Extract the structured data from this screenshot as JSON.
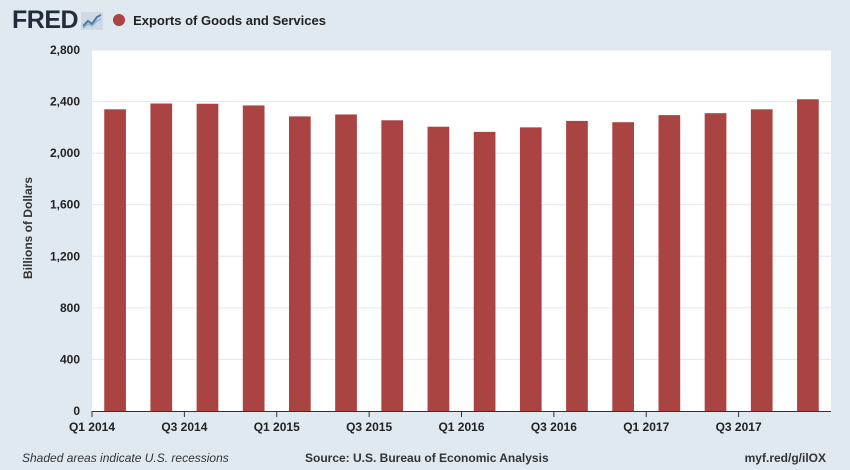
{
  "header": {
    "logo": "FRED",
    "legend_label": "Exports of Goods and Services"
  },
  "colors": {
    "bar": "#a94442",
    "plot_bg": "#ffffff",
    "grid": "#e6e6e6",
    "page_bg": "#e1e9f0"
  },
  "chart_data": {
    "type": "bar",
    "title": "Exports of Goods and Services",
    "xlabel": "",
    "ylabel": "Billions of Dollars",
    "ylim": [
      0,
      2800
    ],
    "yticks": [
      0,
      400,
      800,
      1200,
      1600,
      2000,
      2400,
      2800
    ],
    "ytick_labels": [
      "0",
      "400",
      "800",
      "1,200",
      "1,600",
      "2,000",
      "2,400",
      "2,800"
    ],
    "categories": [
      "Q1 2014",
      "Q2 2014",
      "Q3 2014",
      "Q4 2014",
      "Q1 2015",
      "Q2 2015",
      "Q3 2015",
      "Q4 2015",
      "Q1 2016",
      "Q2 2016",
      "Q3 2016",
      "Q4 2016",
      "Q1 2017",
      "Q2 2017",
      "Q3 2017",
      "Q4 2017"
    ],
    "xtick_labels": [
      "Q1 2014",
      "Q3 2014",
      "Q1 2015",
      "Q3 2015",
      "Q1 2016",
      "Q3 2016",
      "Q1 2017",
      "Q3 2017"
    ],
    "xtick_indices": [
      0,
      2,
      4,
      6,
      8,
      10,
      12,
      14
    ],
    "series": [
      {
        "name": "Exports of Goods and Services",
        "values": [
          2340,
          2385,
          2383,
          2370,
          2285,
          2300,
          2255,
          2205,
          2165,
          2200,
          2250,
          2240,
          2295,
          2310,
          2340,
          2418
        ]
      }
    ],
    "grid": true,
    "legend": "top-left"
  },
  "footer": {
    "recessions": "Shaded areas indicate U.S. recessions",
    "source": "Source: U.S. Bureau of Economic Analysis",
    "link": "myf.red/g/ilOX"
  }
}
